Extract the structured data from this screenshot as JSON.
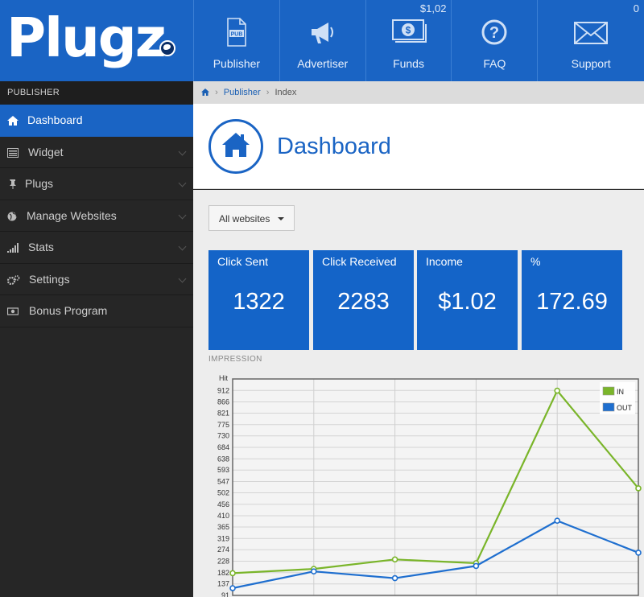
{
  "app": {
    "logo_text": "Plugz"
  },
  "topnav": {
    "items": [
      {
        "label": "Publisher",
        "badge": "",
        "icon": "pub-document-icon"
      },
      {
        "label": "Advertiser",
        "badge": "",
        "icon": "megaphone-icon"
      },
      {
        "label": "Funds",
        "badge": "$1,02",
        "icon": "money-icon"
      },
      {
        "label": "FAQ",
        "badge": "",
        "icon": "help-circle-icon"
      },
      {
        "label": "Support",
        "badge": "0",
        "icon": "envelope-icon"
      }
    ]
  },
  "sidebar": {
    "heading": "PUBLISHER",
    "items": [
      {
        "label": "Dashboard",
        "icon": "home-icon",
        "active": true
      },
      {
        "label": "Widget",
        "icon": "widget-icon"
      },
      {
        "label": "Plugs",
        "icon": "pin-icon"
      },
      {
        "label": "Manage Websites",
        "icon": "globe-icon"
      },
      {
        "label": "Stats",
        "icon": "signal-icon"
      },
      {
        "label": "Settings",
        "icon": "gears-icon"
      },
      {
        "label": "Bonus Program",
        "icon": "cash-icon"
      }
    ]
  },
  "breadcrumb": {
    "items": [
      "Publisher",
      "Index"
    ]
  },
  "page": {
    "title": "Dashboard"
  },
  "filter": {
    "selected": "All websites"
  },
  "stats": [
    {
      "label": "Click Sent",
      "value": "1322"
    },
    {
      "label": "Click Received",
      "value": "2283"
    },
    {
      "label": "Income",
      "value": "$1.02"
    },
    {
      "label": "%",
      "value": "172.69"
    }
  ],
  "colors": {
    "brand": "#1a64c4",
    "in_series": "#7ab52a",
    "out_series": "#1f6fcf"
  },
  "chart_section": {
    "label": "IMPRESSION"
  },
  "chart_data": {
    "type": "line",
    "title": "",
    "ylabel": "Hit",
    "xlabel": "",
    "ylim": [
      91,
      958
    ],
    "y_ticks": [
      "912",
      "866",
      "821",
      "775",
      "730",
      "684",
      "638",
      "593",
      "547",
      "502",
      "456",
      "410",
      "365",
      "319",
      "274",
      "228",
      "182",
      "137",
      "91"
    ],
    "grid": true,
    "legend_position": "top-right",
    "series": [
      {
        "name": "IN",
        "color": "#7ab52a",
        "values": [
          180,
          197,
          235,
          220,
          911,
          520
        ]
      },
      {
        "name": "OUT",
        "color": "#1f6fcf",
        "values": [
          120,
          187,
          160,
          209,
          390,
          262
        ]
      }
    ]
  }
}
